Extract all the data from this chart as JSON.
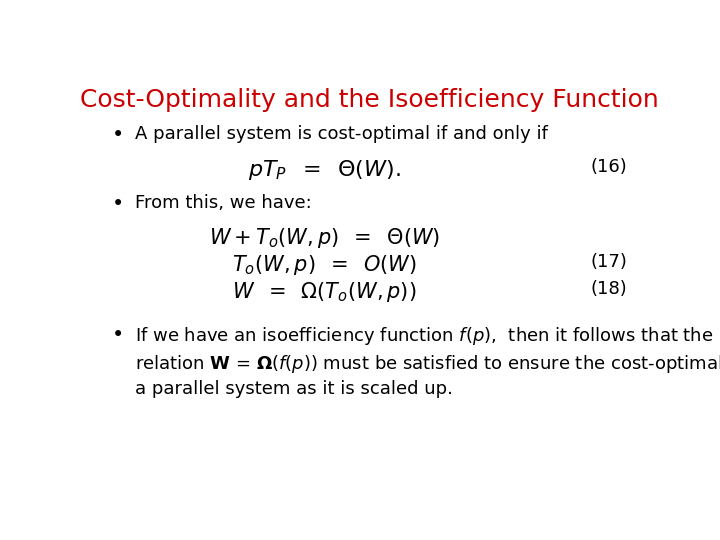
{
  "title": "Cost-Optimality and the Isoefficiency Function",
  "title_color": "#cc0000",
  "title_fontsize": 18,
  "background_color": "#ffffff",
  "bullet1": "A parallel system is cost-optimal if and only if",
  "eq16": "$pT_P \\;\\; = \\;\\; \\Theta(W).$",
  "eq16_label": "(16)",
  "bullet2": "From this, we have:",
  "eq17a": "$W + T_o(W,p) \\;\\; = \\;\\; \\Theta(W)$",
  "eq17b": "$T_o(W,p) \\;\\; = \\;\\; O(W)$",
  "eq17_label": "(17)",
  "eq18": "$W \\;\\; = \\;\\; \\Omega(T_o(W,p))$",
  "eq18_label": "(18)",
  "bullet3_line1": "If we have an isoefficiency function $\\mathit{f}$($\\mathit{p}$),  then it follows that the",
  "bullet3_line2": "relation $\\mathbf{W}$ = $\\mathbf{\\Omega}$($\\mathbf{\\mathit{f}}$($\\mathbf{\\mathit{p}}$)) must be satisfied to ensure the cost-optimality of",
  "bullet3_line3": "a parallel system as it is scaled up.",
  "text_fontsize": 13,
  "eq_fontsize": 14
}
